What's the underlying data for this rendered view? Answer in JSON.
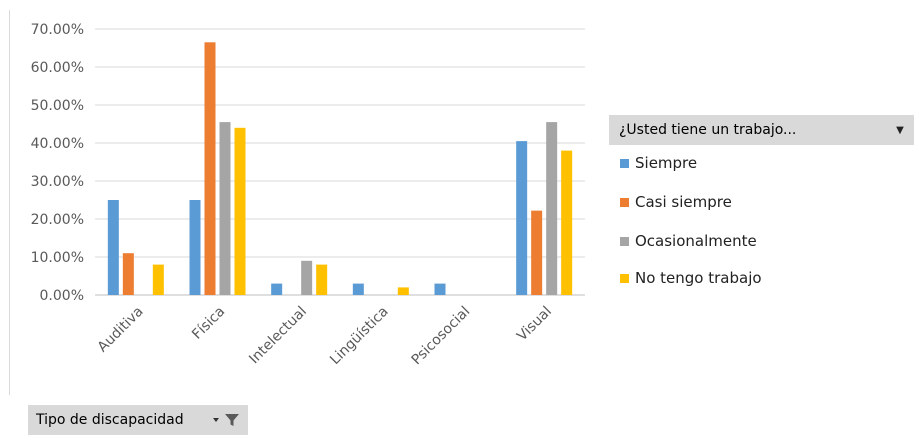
{
  "chart_data": {
    "type": "bar",
    "categories": [
      "Auditiva",
      "Física",
      "Intelectual",
      "Lingüística",
      "Psicosocial",
      "Visual"
    ],
    "series": [
      {
        "name": "Siempre",
        "color": "#5b9bd5",
        "values": [
          25.0,
          25.0,
          3.0,
          3.0,
          3.0,
          40.5
        ]
      },
      {
        "name": "Casi siempre",
        "color": "#ed7d31",
        "values": [
          11.0,
          66.5,
          0,
          0,
          0,
          22.2
        ]
      },
      {
        "name": "Ocasionalmente",
        "color": "#a5a5a5",
        "values": [
          0,
          45.5,
          9.0,
          0,
          0,
          45.5
        ]
      },
      {
        "name": "No tengo trabajo",
        "color": "#ffc000",
        "values": [
          8.0,
          44.0,
          8.0,
          2.0,
          0,
          38.0
        ]
      }
    ],
    "y_ticks": [
      "0.00%",
      "10.00%",
      "20.00%",
      "30.00%",
      "40.00%",
      "50.00%",
      "60.00%",
      "70.00%"
    ],
    "ylim": [
      0,
      70
    ],
    "grid": true,
    "legend_position": "right",
    "legend_title": "¿Usted tiene un trabajo...",
    "axis_filter_label": "Tipo de discapacidad"
  }
}
